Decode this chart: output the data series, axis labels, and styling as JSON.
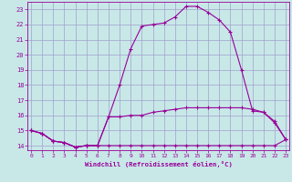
{
  "xlabel": "Windchill (Refroidissement éolien,°C)",
  "background_color": "#c8e8e8",
  "grid_color": "#a0a0cc",
  "line_color": "#990099",
  "x_ticks": [
    0,
    1,
    2,
    3,
    4,
    5,
    6,
    7,
    8,
    9,
    10,
    11,
    12,
    13,
    14,
    15,
    16,
    17,
    18,
    19,
    20,
    21,
    22,
    23
  ],
  "y_ticks": [
    14,
    15,
    16,
    17,
    18,
    19,
    20,
    21,
    22,
    23
  ],
  "xlim": [
    -0.3,
    23.3
  ],
  "ylim": [
    13.7,
    23.5
  ],
  "line1_x": [
    0,
    1,
    2,
    3,
    4,
    5,
    6,
    7,
    8,
    9,
    10,
    11,
    12,
    13,
    14,
    15,
    16,
    17,
    18,
    19,
    20,
    21,
    22,
    23
  ],
  "line1_y": [
    15.0,
    14.8,
    14.3,
    14.2,
    13.9,
    14.0,
    14.0,
    15.9,
    18.0,
    20.4,
    21.9,
    22.0,
    22.1,
    22.5,
    23.2,
    23.2,
    22.8,
    22.3,
    21.5,
    19.0,
    16.3,
    16.2,
    15.5,
    14.4
  ],
  "line2_x": [
    0,
    1,
    2,
    3,
    4,
    5,
    6,
    7,
    8,
    9,
    10,
    11,
    12,
    13,
    14,
    15,
    16,
    17,
    18,
    19,
    20,
    21,
    22,
    23
  ],
  "line2_y": [
    15.0,
    14.8,
    14.3,
    14.2,
    13.9,
    14.0,
    14.0,
    14.0,
    14.0,
    14.0,
    14.0,
    14.0,
    14.0,
    14.0,
    14.0,
    14.0,
    14.0,
    14.0,
    14.0,
    14.0,
    14.0,
    14.0,
    14.0,
    14.4
  ],
  "line3_x": [
    0,
    1,
    2,
    3,
    4,
    5,
    6,
    7,
    8,
    9,
    10,
    11,
    12,
    13,
    14,
    15,
    16,
    17,
    18,
    19,
    20,
    21,
    22,
    23
  ],
  "line3_y": [
    15.0,
    14.8,
    14.3,
    14.2,
    13.9,
    14.0,
    14.0,
    15.9,
    15.9,
    16.0,
    16.0,
    16.2,
    16.3,
    16.4,
    16.5,
    16.5,
    16.5,
    16.5,
    16.5,
    16.5,
    16.4,
    16.2,
    15.6,
    14.4
  ]
}
